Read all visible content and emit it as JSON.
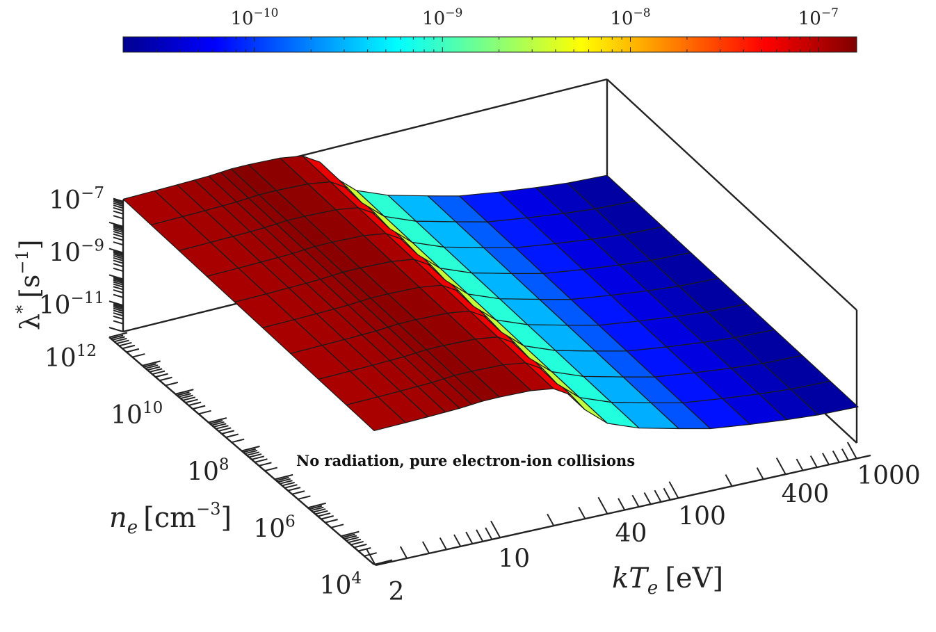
{
  "chart_data": {
    "type": "surface",
    "annotation": "No radiation, pure electron-ion collisions",
    "x_axis": {
      "label_base": "kT",
      "label_sub": "e",
      "label_unit": "[eV]",
      "scale": "log",
      "range": [
        2,
        1000
      ],
      "tick_labels": [
        "2",
        "10",
        "40",
        "100",
        "400",
        "1000"
      ],
      "tick_values": [
        2,
        10,
        40,
        100,
        400,
        1000
      ]
    },
    "y_axis": {
      "label_base": "n",
      "label_sub": "e",
      "label_unit_open": "[cm",
      "label_unit_exp": "−3",
      "label_unit_close": "]",
      "scale": "log",
      "range": [
        10000,
        1000000000000
      ],
      "tick_labels": [
        {
          "base": "10",
          "exp": "4"
        },
        {
          "base": "10",
          "exp": "6"
        },
        {
          "base": "10",
          "exp": "8"
        },
        {
          "base": "10",
          "exp": "10"
        },
        {
          "base": "10",
          "exp": "12"
        }
      ],
      "tick_values": [
        10000,
        1000000,
        100000000,
        10000000000,
        1000000000000
      ]
    },
    "z_axis": {
      "label_base": "λ",
      "label_sup": "*",
      "label_unit_open": "[s",
      "label_unit_exp": "−1",
      "label_unit_close": "]",
      "scale": "log",
      "range": [
        1e-12,
        1e-07
      ],
      "tick_labels": [
        {
          "base": "10",
          "exp": "−11"
        },
        {
          "base": "10",
          "exp": "−9"
        },
        {
          "base": "10",
          "exp": "−7"
        }
      ],
      "tick_values": [
        1e-11,
        1e-09,
        1e-07
      ]
    },
    "colorbar": {
      "colormap": "jet",
      "orientation": "horizontal",
      "placement": "top",
      "scale": "log",
      "range": [
        2e-11,
        1.6e-07
      ],
      "tick_labels": [
        {
          "base": "10",
          "exp": "−10"
        },
        {
          "base": "10",
          "exp": "−9"
        },
        {
          "base": "10",
          "exp": "−8"
        },
        {
          "base": "10",
          "exp": "−7"
        }
      ],
      "tick_values": [
        1e-10,
        1e-09,
        1e-08,
        1e-07
      ]
    },
    "surface": {
      "kTe": [
        2,
        3,
        4,
        5,
        6,
        7,
        8,
        10,
        15,
        20,
        25,
        30,
        40,
        60,
        100,
        150,
        250,
        400,
        600,
        1000
      ],
      "lambda_vs_kTe": [
        1.1e-07,
        1.15e-07,
        1.2e-07,
        1.25e-07,
        1.3e-07,
        1.4e-07,
        1.5e-07,
        1.5e-07,
        1.35e-07,
        1e-07,
        4e-08,
        8e-09,
        1.5e-09,
        5e-10,
        2e-10,
        1e-10,
        6e-11,
        4e-11,
        3e-11,
        2.5e-11
      ],
      "ne_dependence": "weak",
      "grid": "on"
    }
  }
}
